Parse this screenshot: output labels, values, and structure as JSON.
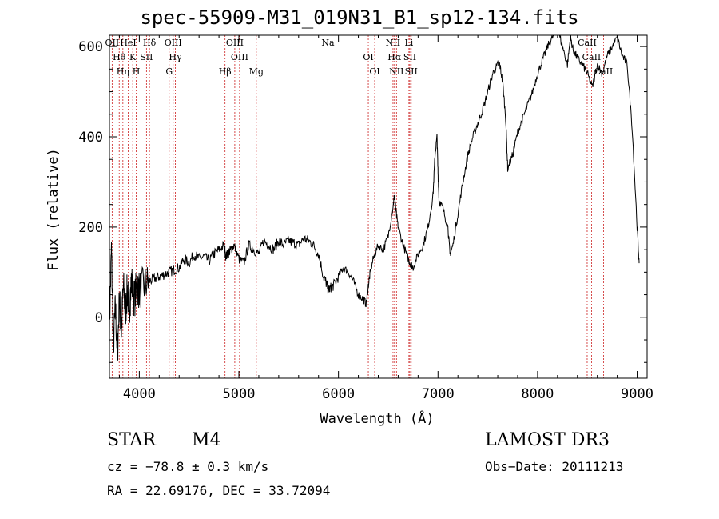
{
  "chart_data": {
    "type": "line",
    "title": "spec-55909-M31_019N31_B1_sp12-134.fits",
    "xlabel": "Wavelength (Å)",
    "ylabel": "Flux (relative)",
    "xlim": [
      3700,
      9100
    ],
    "ylim": [
      -135,
      625
    ],
    "xticks": [
      4000,
      5000,
      6000,
      7000,
      8000,
      9000
    ],
    "yticks": [
      0,
      200,
      400,
      600
    ],
    "series": [
      {
        "name": "flux",
        "x": [
          3700,
          3720,
          3740,
          3760,
          3780,
          3800,
          3820,
          3840,
          3860,
          3880,
          3900,
          3920,
          3950,
          3980,
          4000,
          4050,
          4100,
          4150,
          4200,
          4250,
          4300,
          4350,
          4400,
          4450,
          4500,
          4550,
          4600,
          4650,
          4700,
          4750,
          4800,
          4850,
          4870,
          4900,
          4920,
          4950,
          5000,
          5050,
          5100,
          5150,
          5200,
          5250,
          5300,
          5350,
          5400,
          5450,
          5500,
          5550,
          5600,
          5650,
          5700,
          5750,
          5800,
          5850,
          5880,
          5900,
          5920,
          5950,
          6000,
          6050,
          6100,
          6150,
          6200,
          6250,
          6280,
          6300,
          6320,
          6350,
          6400,
          6450,
          6500,
          6550,
          6563,
          6580,
          6600,
          6650,
          6700,
          6720,
          6750,
          6800,
          6850,
          6900,
          6950,
          6970,
          6990,
          7000,
          7010,
          7050,
          7100,
          7120,
          7150,
          7200,
          7250,
          7300,
          7350,
          7400,
          7450,
          7500,
          7550,
          7600,
          7620,
          7650,
          7680,
          7700,
          7750,
          7800,
          7850,
          7900,
          7950,
          8000,
          8050,
          8100,
          8150,
          8200,
          8250,
          8300,
          8330,
          8360,
          8400,
          8450,
          8500,
          8550,
          8600,
          8650,
          8700,
          8750,
          8800,
          8850,
          8900,
          8950,
          9000,
          9020
        ],
        "y": [
          -20,
          150,
          -60,
          20,
          -80,
          40,
          -30,
          70,
          10,
          60,
          20,
          80,
          40,
          70,
          60,
          70,
          80,
          85,
          90,
          95,
          100,
          105,
          110,
          130,
          120,
          140,
          130,
          135,
          125,
          140,
          150,
          160,
          135,
          145,
          150,
          160,
          130,
          120,
          160,
          150,
          140,
          170,
          160,
          150,
          170,
          160,
          170,
          165,
          160,
          175,
          170,
          160,
          140,
          90,
          75,
          60,
          65,
          70,
          90,
          110,
          100,
          80,
          50,
          40,
          30,
          70,
          100,
          130,
          160,
          150,
          180,
          250,
          270,
          230,
          200,
          160,
          130,
          120,
          110,
          140,
          160,
          200,
          270,
          360,
          400,
          320,
          260,
          240,
          200,
          140,
          160,
          230,
          300,
          360,
          400,
          430,
          460,
          500,
          540,
          560,
          560,
          520,
          440,
          330,
          360,
          410,
          440,
          470,
          500,
          540,
          570,
          600,
          620,
          640,
          600,
          560,
          620,
          590,
          575,
          560,
          540,
          510,
          560,
          540,
          580,
          600,
          620,
          580,
          560,
          420,
          200,
          120
        ],
        "color": "#000000"
      }
    ],
    "lines": [
      {
        "name": "OII",
        "wavelength": 3727
      },
      {
        "name": "Hθ",
        "wavelength": 3798
      },
      {
        "name": "Hη",
        "wavelength": 3835
      },
      {
        "name": "HeI",
        "wavelength": 3889
      },
      {
        "name": "K",
        "wavelength": 3934
      },
      {
        "name": "H",
        "wavelength": 3969
      },
      {
        "name": "Hδ",
        "wavelength": 4102
      },
      {
        "name": "SII",
        "wavelength": 4072
      },
      {
        "name": "G",
        "wavelength": 4300
      },
      {
        "name": "OIII",
        "wavelength": 4340
      },
      {
        "name": "Hγ",
        "wavelength": 4362
      },
      {
        "name": "Hβ",
        "wavelength": 4861
      },
      {
        "name": "OIII",
        "wavelength": 4959
      },
      {
        "name": "OIII",
        "wavelength": 5007
      },
      {
        "name": "Mg",
        "wavelength": 5175
      },
      {
        "name": "Na",
        "wavelength": 5894
      },
      {
        "name": "OI",
        "wavelength": 6300
      },
      {
        "name": "OI",
        "wavelength": 6364
      },
      {
        "name": "NII",
        "wavelength": 6548
      },
      {
        "name": "Hα",
        "wavelength": 6563
      },
      {
        "name": "NII",
        "wavelength": 6583
      },
      {
        "name": "Li",
        "wavelength": 6708
      },
      {
        "name": "SII",
        "wavelength": 6717
      },
      {
        "name": "SII",
        "wavelength": 6731
      },
      {
        "name": "CaII",
        "wavelength": 8498
      },
      {
        "name": "CaII",
        "wavelength": 8542
      },
      {
        "name": "CaII",
        "wavelength": 8662
      }
    ],
    "line_color": "#cc2222",
    "grid": false
  },
  "info": {
    "star_class": "STAR",
    "subclass": "M4",
    "survey": "LAMOST DR3",
    "cz": "cz = −78.8 ± 0.3 km/s",
    "obs_date": "Obs−Date: 20111213",
    "radec": "RA =  22.69176, DEC =  33.72094"
  }
}
